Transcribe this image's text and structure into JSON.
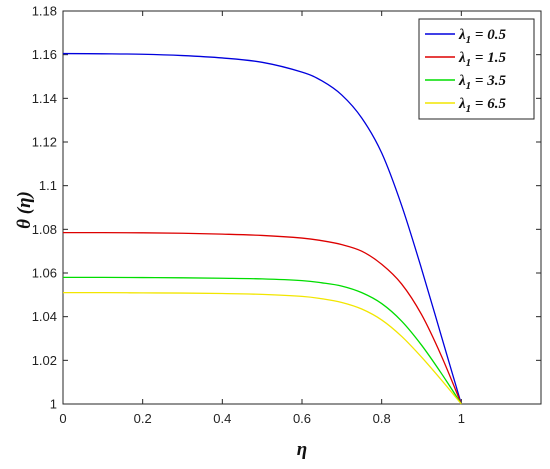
{
  "chart_data": {
    "type": "line",
    "xlabel": "η",
    "ylabel": "θ (η)",
    "xlim": [
      0,
      1.2
    ],
    "ylim": [
      1.0,
      1.18
    ],
    "xticks": [
      0,
      0.2,
      0.4,
      0.6,
      0.8,
      1
    ],
    "xtick_labels": [
      "0",
      "0.2",
      "0.4",
      "0.6",
      "0.8",
      "1"
    ],
    "yticks": [
      1.0,
      1.02,
      1.04,
      1.06,
      1.08,
      1.1,
      1.12,
      1.14,
      1.16,
      1.18
    ],
    "ytick_labels": [
      "1",
      "1.02",
      "1.04",
      "1.06",
      "1.08",
      "1.1",
      "1.12",
      "1.14",
      "1.16",
      "1.18"
    ],
    "grid": false,
    "legend_position": "top-right",
    "x": [
      0,
      0.1,
      0.2,
      0.3,
      0.4,
      0.5,
      0.6,
      0.65,
      0.7,
      0.75,
      0.8,
      0.85,
      0.9,
      0.95,
      1.0
    ],
    "series": [
      {
        "name": "λ1 = 0.5",
        "name_main": "λ",
        "name_sub": "1",
        "name_value": " = 0.5",
        "color": "#0000dd",
        "values": [
          1.1605,
          1.1604,
          1.1602,
          1.1596,
          1.1585,
          1.1565,
          1.152,
          1.148,
          1.1415,
          1.131,
          1.115,
          1.091,
          1.062,
          1.031,
          1.0
        ]
      },
      {
        "name": "λ1 = 1.5",
        "name_main": "λ",
        "name_sub": "1",
        "name_value": " = 1.5",
        "color": "#dd0000",
        "values": [
          1.0785,
          1.0785,
          1.0784,
          1.0782,
          1.0778,
          1.0772,
          1.076,
          1.0748,
          1.073,
          1.07,
          1.064,
          1.055,
          1.041,
          1.022,
          1.0
        ]
      },
      {
        "name": "λ1 = 3.5",
        "name_main": "λ",
        "name_sub": "1",
        "name_value": " = 3.5",
        "color": "#00dd00",
        "values": [
          1.058,
          1.058,
          1.0579,
          1.0578,
          1.0576,
          1.0573,
          1.0565,
          1.0555,
          1.054,
          1.051,
          1.046,
          1.038,
          1.027,
          1.014,
          1.0
        ]
      },
      {
        "name": "λ1 = 6.5",
        "name_main": "λ",
        "name_sub": "1",
        "name_value": " = 6.5",
        "color": "#f2e600",
        "values": [
          1.051,
          1.051,
          1.0509,
          1.0508,
          1.0506,
          1.0502,
          1.0493,
          1.0482,
          1.0465,
          1.0435,
          1.0385,
          1.031,
          1.0215,
          1.011,
          1.0
        ]
      }
    ]
  }
}
